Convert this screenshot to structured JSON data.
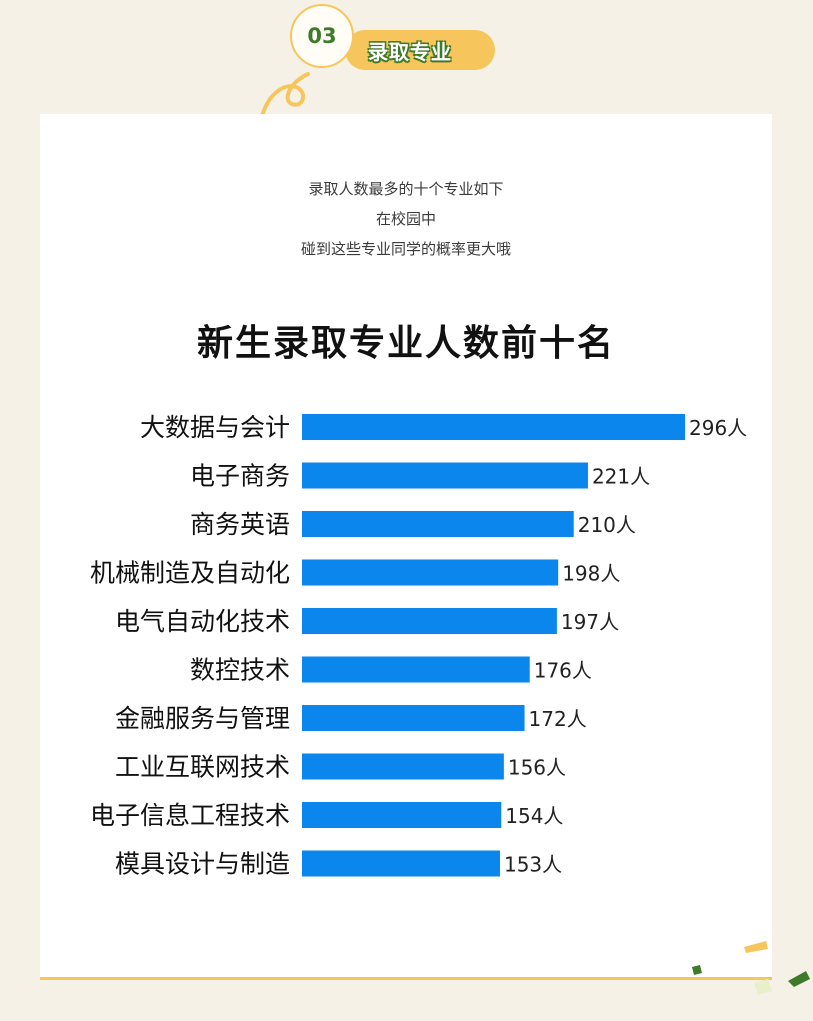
{
  "header": {
    "number": "03",
    "title": "录取专业"
  },
  "intro": {
    "line1": "录取人数最多的十个专业如下",
    "line2": "在校园中",
    "line3": "碰到这些专业同学的概率更大哦"
  },
  "colors": {
    "bar": "#0a86ec",
    "accent_yellow": "#f6c65c",
    "accent_green": "#3d7a2a",
    "background": "#f6f1e6"
  },
  "chart_data": {
    "type": "bar",
    "orientation": "horizontal",
    "title": "新生录取专业人数前十名",
    "categories": [
      "大数据与会计",
      "电子商务",
      "商务英语",
      "机械制造及自动化",
      "电气自动化技术",
      "数控技术",
      "金融服务与管理",
      "工业互联网技术",
      "电子信息工程技术",
      "模具设计与制造"
    ],
    "values": [
      296,
      221,
      210,
      198,
      197,
      176,
      172,
      156,
      154,
      153
    ],
    "data_labels": [
      "296人",
      "221人",
      "210人",
      "198人",
      "197人",
      "176人",
      "172人",
      "156人",
      "154人",
      "153人"
    ],
    "xlim": [
      0,
      296
    ],
    "grid": false,
    "legend": "none"
  }
}
